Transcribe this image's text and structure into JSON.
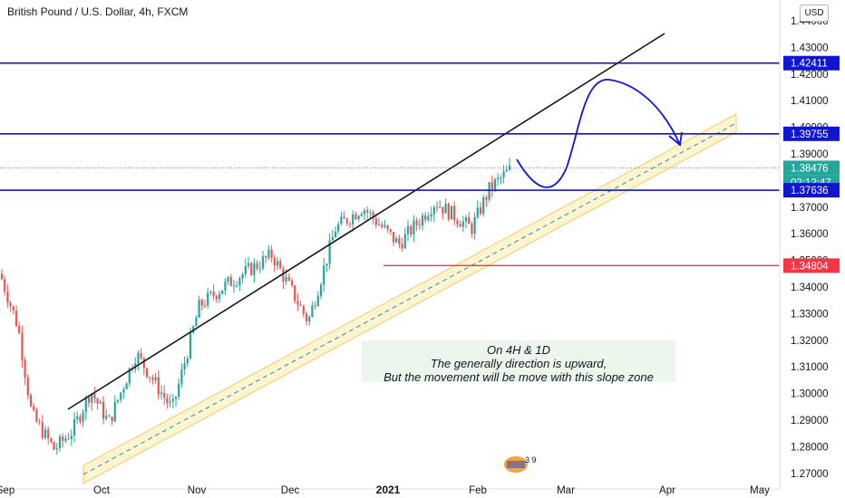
{
  "header": {
    "title": "British Pound / U.S. Dollar, 4h, FXCM",
    "currency_button": "USD"
  },
  "chart_data": {
    "type": "candlestick",
    "title": "British Pound / U.S. Dollar, 4h, FXCM",
    "y_ticks": [
      "1.44000",
      "1.43000",
      "1.42000",
      "1.41000",
      "1.40000",
      "1.39000",
      "1.38000",
      "1.37000",
      "1.36000",
      "1.35000",
      "1.34000",
      "1.33000",
      "1.32000",
      "1.31000",
      "1.30000",
      "1.29000",
      "1.28000",
      "1.27000"
    ],
    "x_ticks": [
      "Sep",
      "Oct",
      "Nov",
      "Dec",
      "2021",
      "Feb",
      "Mar",
      "Apr",
      "May"
    ],
    "price_badges": [
      {
        "label": "1.42411",
        "value": 1.42411,
        "color": "#1016d0"
      },
      {
        "label": "1.39755",
        "value": 1.39755,
        "color": "#1016d0"
      },
      {
        "label": "1.38476",
        "value": 1.38476,
        "color": "#26a69a"
      },
      {
        "label": "02:12:47",
        "value": 1.38,
        "color": "#26a69a"
      },
      {
        "label": "1.37636",
        "value": 1.37636,
        "color": "#1016d0"
      },
      {
        "label": "1.34804",
        "value": 1.34804,
        "color": "#f23645"
      }
    ],
    "annotation": {
      "lines": [
        "On 4H & 1D",
        "The generally direction is upward,",
        "But the movement will be move with this slope zone"
      ]
    },
    "colors": {
      "up": "#26a69a",
      "down": "#ef5350",
      "level": "#1016d0",
      "resistance": "#f23645",
      "channel": "#f5d98a"
    },
    "approximate_path": [
      [
        "Sep",
        1.345
      ],
      [
        "Sep",
        1.325
      ],
      [
        "Sep",
        1.29
      ],
      [
        "Sep",
        1.275
      ],
      [
        "Oct",
        1.285
      ],
      [
        "Oct",
        1.3
      ],
      [
        "Oct",
        1.29
      ],
      [
        "Oct",
        1.31
      ],
      [
        "Nov",
        1.29
      ],
      [
        "Nov",
        1.33
      ],
      [
        "Nov",
        1.34
      ],
      [
        "Dec",
        1.35
      ],
      [
        "Dec",
        1.33
      ],
      [
        "Dec",
        1.36
      ],
      [
        "2021",
        1.37
      ],
      [
        "2021",
        1.355
      ],
      [
        "2021",
        1.37
      ],
      [
        "Feb",
        1.36
      ],
      [
        "Feb",
        1.385
      ]
    ]
  },
  "logo": {
    "text": "3 9"
  }
}
